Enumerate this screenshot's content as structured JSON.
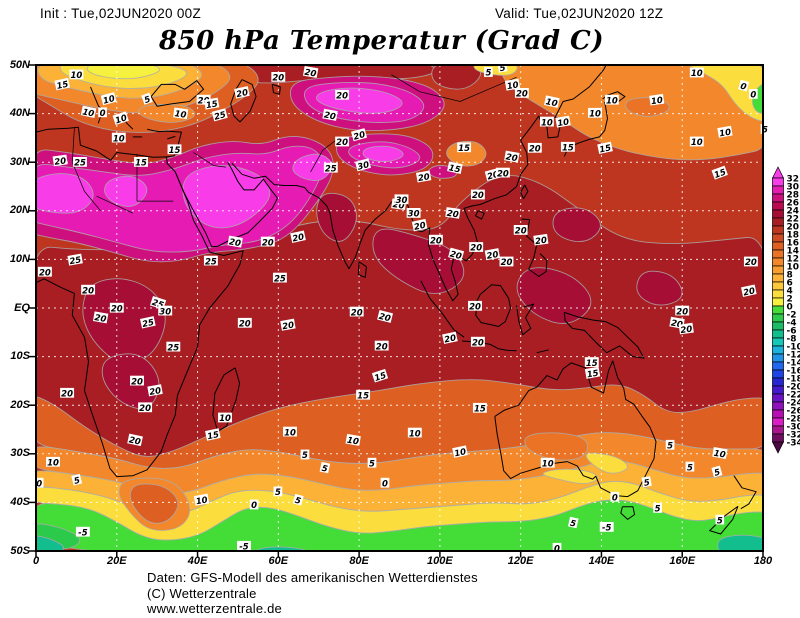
{
  "header": {
    "init": "Init : Tue,02JUN2020 00Z",
    "valid": "Valid: Tue,02JUN2020 12Z"
  },
  "title": "850 hPa Temperatur (Grad C)",
  "footer": {
    "line1": "Daten: GFS-Modell des amerikanischen Wetterdienstes",
    "line2": "(C) Wetterzentrale",
    "line3": "www.wetterzentrale.de"
  },
  "axes": {
    "lat_ticks": [
      [
        "50N",
        50
      ],
      [
        "40N",
        40
      ],
      [
        "30N",
        30
      ],
      [
        "20N",
        20
      ],
      [
        "10N",
        10
      ],
      [
        "EQ",
        0
      ],
      [
        "10S",
        -10
      ],
      [
        "20S",
        -20
      ],
      [
        "30S",
        -30
      ],
      [
        "40S",
        -40
      ],
      [
        "50S",
        -50
      ]
    ],
    "lon_ticks": [
      [
        "0",
        0
      ],
      [
        "20E",
        20
      ],
      [
        "40E",
        40
      ],
      [
        "60E",
        60
      ],
      [
        "80E",
        80
      ],
      [
        "100E",
        100
      ],
      [
        "120E",
        120
      ],
      [
        "140E",
        140
      ],
      [
        "160E",
        160
      ],
      [
        "180",
        180
      ]
    ]
  },
  "scale": {
    "tick_labels": [
      "32",
      "30",
      "28",
      "26",
      "24",
      "22",
      "20",
      "18",
      "16",
      "14",
      "12",
      "10",
      "8",
      "6",
      "4",
      "2",
      "0",
      "-2",
      "-4",
      "-6",
      "-8",
      "-10",
      "-12",
      "-14",
      "-16",
      "-18",
      "-20",
      "-22",
      "-24",
      "-26",
      "-28",
      "-30",
      "-32",
      "-34"
    ],
    "colors": [
      "#F83CE8",
      "#E61BB4",
      "#CE107E",
      "#BC0A52",
      "#A60E35",
      "#A81E22",
      "#BE3620",
      "#CE4A22",
      "#DE5F22",
      "#EA7326",
      "#F2882B",
      "#F89D31",
      "#FBB236",
      "#FCC83A",
      "#FBDE3E",
      "#F6F03F",
      "#44DC36",
      "#2BCA4A",
      "#1DBB66",
      "#12BE8E",
      "#16C8B8",
      "#1BB2DC",
      "#2092E8",
      "#2168F0",
      "#1F44E6",
      "#2726D4",
      "#4519CE",
      "#6B12C6",
      "#9110BE",
      "#B80DB4",
      "#DC1EC8",
      "#A8158E",
      "#6F0E5E"
    ],
    "arrow_top": "#F83CE8",
    "arrow_bottom": "#4A0940"
  },
  "chart_data": {
    "type": "heatmap",
    "title": "850 hPa Temperatur (Grad C)",
    "parameter": "Temperature at 850 hPa",
    "unit": "Grad C",
    "model": "GFS",
    "init_time": "Tue,02JUN2020 00Z",
    "valid_time": "Tue,02JUN2020 12Z",
    "lon_range_deg": [
      0,
      180
    ],
    "lat_range_deg": [
      -50,
      50
    ],
    "grid": "dashed graticule every 10 deg latitude / 20 deg longitude",
    "legend_position": "right",
    "colorbar_ticks": [
      32,
      30,
      28,
      26,
      24,
      22,
      20,
      18,
      16,
      14,
      12,
      10,
      8,
      6,
      4,
      2,
      0,
      -2,
      -4,
      -6,
      -8,
      -10,
      -12,
      -14,
      -16,
      -18,
      -20,
      -22,
      -24,
      -26,
      -28,
      -30,
      -32,
      -34
    ],
    "contour_interval_c": 5,
    "features": [
      "Hottest air 28-32C (magenta) over Sahara, Arabian Peninsula, Iran, NW India, Tibetan Plateau and Central Asia",
      "Broad 20-25C dark-red belt across the tropics from equatorial Africa to the western Pacific",
      "Mild 10-15C air (orange/yellow) over Europe, NE Asia and the North Pacific, 0C pocket near 178E/42N",
      "Austral winter: 5-15C over Australia, 0 to -5C (green) along 40S-50S, coldest pockets below -5C"
    ],
    "contour_labels": [
      [
        10,
        48,
        "10",
        0
      ],
      [
        6.5,
        46,
        "15",
        -12
      ],
      [
        18,
        43,
        "10",
        -15
      ],
      [
        27.5,
        43,
        "5",
        -20
      ],
      [
        13,
        40.3,
        "10",
        12
      ],
      [
        16.5,
        40.2,
        "0",
        0
      ],
      [
        21,
        39,
        "10",
        -18
      ],
      [
        20.5,
        35,
        "10",
        0
      ],
      [
        35.8,
        40,
        "10",
        8
      ],
      [
        41.5,
        42.8,
        "20",
        0
      ],
      [
        43.5,
        42,
        "15",
        -10
      ],
      [
        45.5,
        39.7,
        "25",
        -15
      ],
      [
        34.3,
        32.6,
        "15",
        0
      ],
      [
        26,
        30,
        "15",
        0
      ],
      [
        51,
        44.3,
        "20",
        -12
      ],
      [
        60,
        47.5,
        "20",
        0
      ],
      [
        68,
        48.5,
        "20",
        10
      ],
      [
        75.8,
        43.8,
        "20",
        0
      ],
      [
        72.8,
        39.7,
        "20",
        10
      ],
      [
        80,
        35.6,
        "20",
        -15
      ],
      [
        75.8,
        34.2,
        "20",
        0
      ],
      [
        73,
        28.8,
        "25",
        0
      ],
      [
        81,
        29.4,
        "30",
        -15
      ],
      [
        106,
        33,
        "15",
        0
      ],
      [
        103.7,
        28.8,
        "15",
        12
      ],
      [
        96,
        27,
        "20",
        -10
      ],
      [
        93.5,
        19.5,
        "30",
        0
      ],
      [
        89.8,
        21.3,
        "20",
        8
      ],
      [
        90.5,
        22.3,
        "30",
        0
      ],
      [
        112,
        48.5,
        "5",
        0
      ],
      [
        115.5,
        49.5,
        "5",
        -10
      ],
      [
        118,
        45.9,
        "10",
        -10
      ],
      [
        120.3,
        44.2,
        "20",
        0
      ],
      [
        127.7,
        42.4,
        "10",
        12
      ],
      [
        126.5,
        38.3,
        "10",
        0
      ],
      [
        130.5,
        38.3,
        "10",
        -10
      ],
      [
        138.4,
        40.1,
        "10",
        0
      ],
      [
        142.6,
        42.8,
        "10",
        0
      ],
      [
        153.7,
        42.8,
        "10",
        -8
      ],
      [
        163.6,
        48.4,
        "10",
        0
      ],
      [
        175.2,
        45.7,
        "0",
        15
      ],
      [
        177.6,
        44,
        "0",
        0
      ],
      [
        170.6,
        36.2,
        "10",
        -10
      ],
      [
        163.6,
        34.2,
        "10",
        0
      ],
      [
        180.5,
        36.8,
        "5",
        0
      ],
      [
        169.3,
        27.8,
        "15",
        -20
      ],
      [
        131.7,
        33.1,
        "15",
        0
      ],
      [
        140.9,
        32.9,
        "15",
        -12
      ],
      [
        123.5,
        32.9,
        "20",
        0
      ],
      [
        117.8,
        31.1,
        "20",
        10
      ],
      [
        113.1,
        27.4,
        "20",
        -15
      ],
      [
        115.6,
        27.8,
        "20",
        0
      ],
      [
        109.4,
        23.3,
        "20",
        0
      ],
      [
        103.2,
        19.5,
        "20",
        8
      ],
      [
        95,
        17,
        "20",
        -12
      ],
      [
        99,
        14,
        "20",
        0
      ],
      [
        104,
        11,
        "20",
        15
      ],
      [
        109,
        12.5,
        "20",
        0
      ],
      [
        113,
        11,
        "20",
        -10
      ],
      [
        116.5,
        9.5,
        "20",
        0
      ],
      [
        120,
        16,
        "20",
        0
      ],
      [
        125,
        14,
        "20",
        -8
      ],
      [
        6,
        30.3,
        "20",
        -8
      ],
      [
        10.9,
        30,
        "25",
        0
      ],
      [
        2.2,
        7.4,
        "20",
        0
      ],
      [
        9.7,
        9.9,
        "25",
        -10
      ],
      [
        12.9,
        3.7,
        "20",
        0
      ],
      [
        43.3,
        9.7,
        "25",
        0
      ],
      [
        49.3,
        13.6,
        "20",
        10
      ],
      [
        57.4,
        13.6,
        "20",
        0
      ],
      [
        64.9,
        14.6,
        "20",
        -12
      ],
      [
        60.4,
        6.2,
        "25",
        0
      ],
      [
        30.2,
        1,
        "25",
        18
      ],
      [
        32,
        -0.6,
        "30",
        0
      ],
      [
        27.7,
        -3,
        "25",
        -12
      ],
      [
        20,
        0,
        "20",
        0
      ],
      [
        16,
        -2,
        "20",
        10
      ],
      [
        34,
        -8,
        "25",
        0
      ],
      [
        25,
        -15,
        "20",
        0
      ],
      [
        29.5,
        -17,
        "20",
        -10
      ],
      [
        27,
        -20.5,
        "20",
        0
      ],
      [
        24.5,
        -27.2,
        "20",
        12
      ],
      [
        7.7,
        -17.5,
        "20",
        0
      ],
      [
        51.7,
        -3.1,
        "20",
        0
      ],
      [
        62.4,
        -3.5,
        "20",
        -10
      ],
      [
        79.4,
        -0.8,
        "20",
        0
      ],
      [
        86.4,
        -1.8,
        "20",
        14
      ],
      [
        85.6,
        -7.8,
        "20",
        0
      ],
      [
        85.2,
        -14,
        "15",
        -18
      ],
      [
        81,
        -17.9,
        "15",
        0
      ],
      [
        46.8,
        -22.6,
        "10",
        0
      ],
      [
        43.8,
        -26.1,
        "15",
        -12
      ],
      [
        62.9,
        -25.5,
        "10",
        0
      ],
      [
        78.5,
        -27.2,
        "10",
        10
      ],
      [
        4.2,
        -31.7,
        "10",
        0
      ],
      [
        10.1,
        -35.4,
        "5",
        -14
      ],
      [
        0.8,
        -36,
        "0",
        0
      ],
      [
        66.6,
        -30.2,
        "5",
        0
      ],
      [
        71.5,
        -32.9,
        "5",
        12
      ],
      [
        83.2,
        -31.9,
        "5",
        0
      ],
      [
        86.4,
        -36,
        "0",
        0
      ],
      [
        41,
        -39.5,
        "10",
        -10
      ],
      [
        54,
        -40.5,
        "0",
        0
      ],
      [
        59.9,
        -37.8,
        "5",
        0
      ],
      [
        64.9,
        -39.5,
        "5",
        15
      ],
      [
        11.6,
        -46.1,
        "-5",
        0
      ],
      [
        51.5,
        -49,
        "-5",
        0
      ],
      [
        102.5,
        -6.2,
        "20",
        -12
      ],
      [
        109.4,
        -7,
        "20",
        0
      ],
      [
        108.7,
        0.4,
        "20",
        0
      ],
      [
        158.7,
        -3.1,
        "20",
        10
      ],
      [
        160,
        -0.6,
        "20",
        0
      ],
      [
        161,
        -4.3,
        "20",
        -8
      ],
      [
        177,
        9.5,
        "20",
        0
      ],
      [
        176.5,
        3.5,
        "20",
        -12
      ],
      [
        137.6,
        -11.2,
        "15",
        0
      ],
      [
        137.8,
        -13.4,
        "15",
        -10
      ],
      [
        109.9,
        -20.6,
        "15",
        0
      ],
      [
        93.8,
        -25.7,
        "10",
        0
      ],
      [
        105,
        -29.6,
        "10",
        -12
      ],
      [
        126.7,
        -31.9,
        "10",
        0
      ],
      [
        157,
        -28.2,
        "5",
        0
      ],
      [
        169.3,
        -29.9,
        "10",
        10
      ],
      [
        143.3,
        -38.9,
        "0",
        0
      ],
      [
        151.2,
        -35.8,
        "5",
        -10
      ],
      [
        153.9,
        -41.2,
        "5",
        0
      ],
      [
        161.9,
        -32.7,
        "5",
        0
      ],
      [
        168.6,
        -33.7,
        "5",
        -15
      ],
      [
        169.3,
        -43.6,
        "5",
        0
      ],
      [
        141.3,
        -45.1,
        "-5",
        0
      ],
      [
        129,
        -49.4,
        "0",
        0
      ],
      [
        133,
        -44.2,
        "5",
        12
      ]
    ]
  }
}
